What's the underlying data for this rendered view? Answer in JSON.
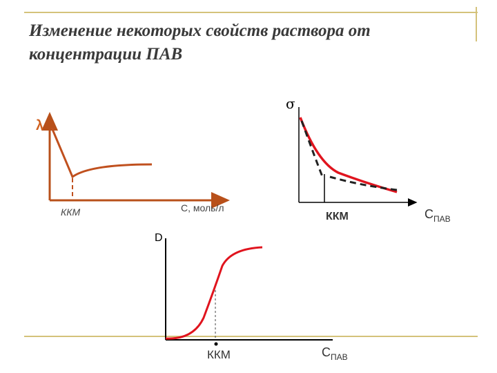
{
  "header": {
    "title_line1": "Изменение некоторых свойств  раствора от",
    "title_line2": "концентрации ПАВ"
  },
  "graphs": [
    {
      "y_label": "λ",
      "marker_label": "ККМ",
      "x_label": "С, моль/л"
    },
    {
      "y_label": "σ",
      "marker_label": "ККМ",
      "x_label": {
        "symbol": "С",
        "subscript": "ПАВ"
      }
    },
    {
      "y_label": "D",
      "marker_label": "ККМ",
      "x_label": {
        "symbol": "С",
        "subscript": "ПАВ"
      }
    }
  ]
}
